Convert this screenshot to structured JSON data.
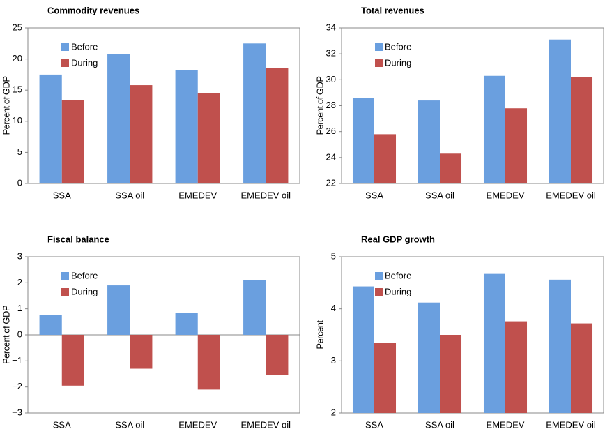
{
  "chart_data": [
    {
      "type": "bar",
      "title": "Commodity revenues",
      "ylabel": "Percent of GDP",
      "categories": [
        "SSA",
        "SSA oil",
        "EMEDEV",
        "EMEDEV oil"
      ],
      "series": [
        {
          "name": "Before",
          "color": "#6a9fdf",
          "values": [
            17.5,
            20.8,
            18.2,
            22.5
          ]
        },
        {
          "name": "During",
          "color": "#c0504d",
          "values": [
            13.4,
            15.8,
            14.5,
            18.6
          ]
        }
      ],
      "ylim": [
        0,
        25
      ],
      "yticks": [
        0,
        5,
        10,
        15,
        20,
        25
      ],
      "legend": "upper left"
    },
    {
      "type": "bar",
      "title": "Total revenues",
      "ylabel": "Percent of GDP",
      "categories": [
        "SSA",
        "SSA oil",
        "EMEDEV",
        "EMEDEV oil"
      ],
      "series": [
        {
          "name": "Before",
          "color": "#6a9fdf",
          "values": [
            28.6,
            28.4,
            30.3,
            33.1
          ]
        },
        {
          "name": "During",
          "color": "#c0504d",
          "values": [
            25.8,
            24.3,
            27.8,
            30.2
          ]
        }
      ],
      "ylim": [
        22,
        34
      ],
      "yticks": [
        22,
        24,
        26,
        28,
        30,
        32,
        34
      ],
      "legend": "upper left"
    },
    {
      "type": "bar",
      "title": "Fiscal balance",
      "ylabel": "Percent of GDP",
      "categories": [
        "SSA",
        "SSA oil",
        "EMEDEV",
        "EMEDEV oil"
      ],
      "series": [
        {
          "name": "Before",
          "color": "#6a9fdf",
          "values": [
            0.75,
            1.9,
            0.85,
            2.1
          ]
        },
        {
          "name": "During",
          "color": "#c0504d",
          "values": [
            -1.95,
            -1.3,
            -2.1,
            -1.55
          ]
        }
      ],
      "ylim": [
        -3,
        3
      ],
      "yticks": [
        {
          "value": -3,
          "label": "−3"
        },
        {
          "value": -2,
          "label": "−2"
        },
        {
          "value": -1,
          "label": "−1"
        },
        0,
        1,
        2,
        3
      ],
      "legend": "upper left"
    },
    {
      "type": "bar",
      "title": "Real GDP growth",
      "ylabel": "Percent",
      "categories": [
        "SSA",
        "SSA oil",
        "EMEDEV",
        "EMEDEV oil"
      ],
      "series": [
        {
          "name": "Before",
          "color": "#6a9fdf",
          "values": [
            4.43,
            4.12,
            4.67,
            4.56
          ]
        },
        {
          "name": "During",
          "color": "#c0504d",
          "values": [
            3.34,
            3.5,
            3.76,
            3.72
          ]
        }
      ],
      "ylim": [
        2,
        5
      ],
      "yticks": [
        2,
        3,
        4,
        5
      ],
      "legend": "upper left"
    }
  ]
}
